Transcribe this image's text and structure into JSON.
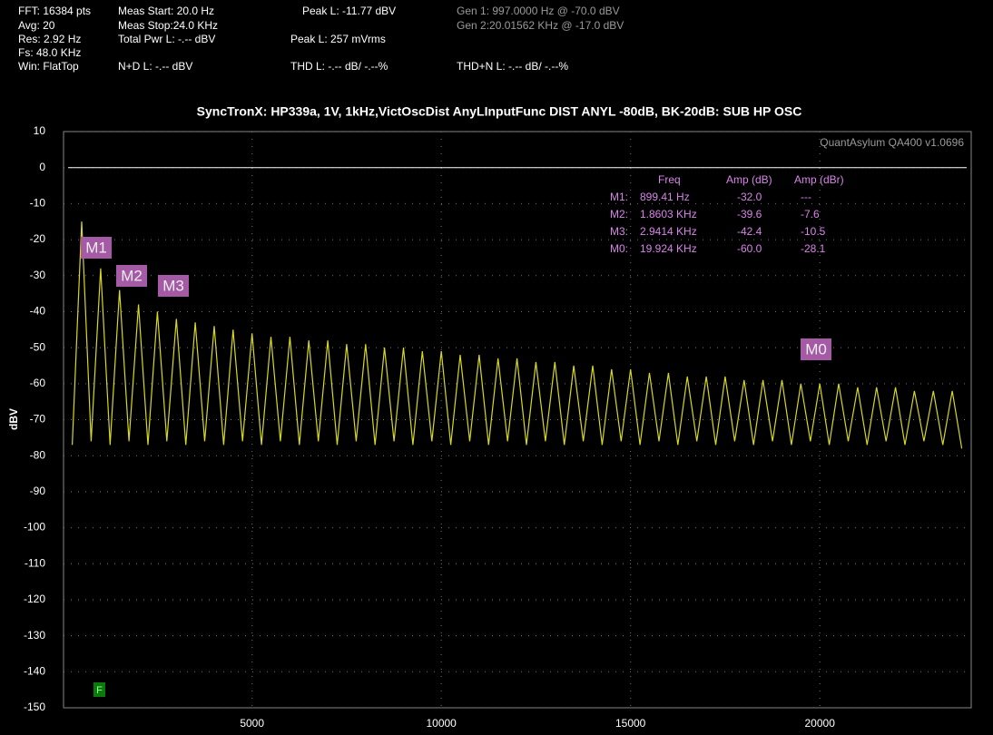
{
  "header": [
    "FFT: 16384 pts",
    "Avg: 20",
    "Res: 2.92 Hz",
    "Fs: 48.0 KHz",
    "Win: FlatTop",
    "Meas Start: 20.0 Hz",
    "Meas Stop:24.0 KHz",
    "Total Pwr L: -.-- dBV",
    "N+D L: -.-- dBV",
    "Peak L: -11.77 dBV",
    "Peak L: 257 mVrms",
    "THD L: -.-- dB/ -.--%",
    "Gen 1: 997.0000 Hz @ -70.0  dBV",
    "Gen 2:20.01562 KHz @ -17.0  dBV",
    "THD+N L: -.-- dB/ -.--%"
  ],
  "chart_data": {
    "type": "line",
    "title": "SyncTronX: HP339a, 1V, 1kHz,VictOscDist AnyLInputFunc DIST ANYL -80dB, BK-20dB: SUB HP OSC",
    "watermark": "QuantAsylum QA400 v1.0696",
    "ylabel": "dBV",
    "grid": true,
    "reference_line": 0,
    "xlim": [
      20,
      24000
    ],
    "xticks": [
      5000,
      10000,
      15000,
      20000
    ],
    "ylim": [
      -150,
      10
    ],
    "yticks": [
      -150,
      -140,
      -130,
      -120,
      -110,
      -100,
      -90,
      -80,
      -70,
      -60,
      -50,
      -40,
      -30,
      -20,
      -10,
      0,
      10
    ],
    "x": [
      250,
      500,
      750,
      1000,
      1250,
      1500,
      1750,
      2000,
      2250,
      2500,
      2750,
      3000,
      3250,
      3500,
      3750,
      4000,
      4250,
      4500,
      4750,
      5000,
      5250,
      5500,
      5750,
      6000,
      6250,
      6500,
      6750,
      7000,
      7250,
      7500,
      7750,
      8000,
      8250,
      8500,
      8750,
      9000,
      9250,
      9500,
      9750,
      10000,
      10250,
      10500,
      10750,
      11000,
      11250,
      11500,
      11750,
      12000,
      12250,
      12500,
      12750,
      13000,
      13250,
      13500,
      13750,
      14000,
      14250,
      14500,
      14750,
      15000,
      15250,
      15500,
      15750,
      16000,
      16250,
      16500,
      16750,
      17000,
      17250,
      17500,
      17750,
      18000,
      18250,
      18500,
      18750,
      19000,
      19250,
      19500,
      19750,
      20000,
      20250,
      20500,
      20750,
      21000,
      21250,
      21500,
      21750,
      22000,
      22250,
      22500,
      22750,
      23000,
      23250,
      23500,
      23750
    ],
    "series": [
      {
        "color": "#d8d820",
        "values": [
          -77,
          -15,
          -76,
          -28,
          -77,
          -34,
          -76,
          -38,
          -77,
          -40,
          -76,
          -42,
          -77,
          -43,
          -76,
          -44,
          -77,
          -45,
          -76,
          -46,
          -77,
          -47,
          -76,
          -47,
          -77,
          -48,
          -76,
          -48,
          -77,
          -49,
          -76,
          -49,
          -77,
          -50,
          -76,
          -50,
          -77,
          -51,
          -76,
          -51,
          -77,
          -52,
          -76,
          -52,
          -77,
          -53,
          -76,
          -53,
          -77,
          -54,
          -76,
          -54,
          -77,
          -55,
          -76,
          -55,
          -77,
          -56,
          -76,
          -56,
          -77,
          -57,
          -76,
          -57,
          -77,
          -58,
          -76,
          -58,
          -77,
          -58,
          -76,
          -59,
          -77,
          -59,
          -76,
          -59,
          -77,
          -60,
          -76,
          -60,
          -77,
          -60,
          -76,
          -61,
          -77,
          -61,
          -76,
          -61,
          -77,
          -62,
          -76,
          -62,
          -77,
          -62,
          -78
        ]
      }
    ],
    "marker_table": {
      "headers": [
        "Freq",
        "Amp (dB)",
        "Amp (dBr)"
      ],
      "rows": [
        [
          "M1:",
          "899.41 Hz",
          "-32.0",
          "---"
        ],
        [
          "M2:",
          "1.8603 KHz",
          "-39.6",
          "-7.6"
        ],
        [
          "M3:",
          "2.9414 KHz",
          "-42.4",
          "-10.5"
        ],
        [
          "M0:",
          "19.924 KHz",
          "-60.0",
          "-28.1"
        ]
      ]
    },
    "marker_labels": [
      "M1",
      "M2",
      "M3",
      "M0"
    ],
    "flag": "F"
  }
}
